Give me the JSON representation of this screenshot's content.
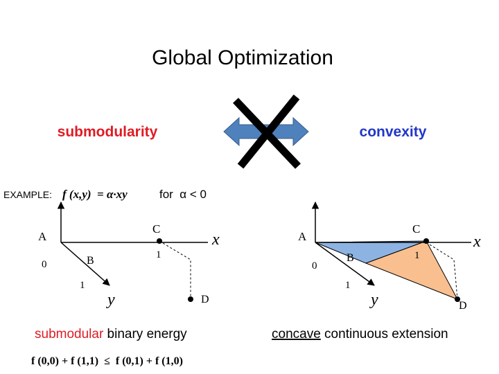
{
  "title": "Global Optimization",
  "left": {
    "heading": "submodularity",
    "example_label": "EXAMPLE:",
    "formula": "f (x,y)  = α·xy",
    "condition": "for  α < 0",
    "diagram": {
      "A": "A",
      "zero": "0",
      "B": "B",
      "one_y": "1",
      "C": "C",
      "one_x": "1",
      "x": "x",
      "y": "y",
      "D": "D"
    },
    "caption": {
      "highlight": "submodular",
      "rest": " binary energy"
    },
    "inequality": "f (0,0) + f (1,1)  ≤  f (0,1) + f (1,0)"
  },
  "right": {
    "heading": "convexity",
    "diagram": {
      "A": "A",
      "zero": "0",
      "B": "B",
      "one_y": "1",
      "C": "C",
      "one_x": "1",
      "x": "x",
      "y": "y",
      "D": "D"
    },
    "caption": {
      "highlight": "concave",
      "rest": " continuous extension"
    }
  }
}
